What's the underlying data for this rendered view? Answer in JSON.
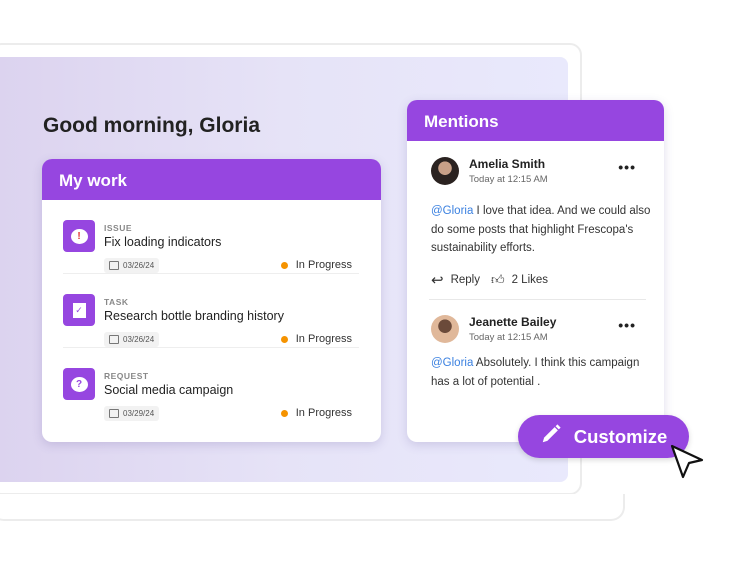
{
  "greeting": "Good morning, Gloria",
  "my_work": {
    "title": "My work",
    "items": [
      {
        "type": "ISSUE",
        "title": "Fix loading indicators",
        "date": "03/26/24",
        "status": "In Progress",
        "icon": "alert-bubble-icon"
      },
      {
        "type": "TASK",
        "title": "Research bottle branding history",
        "date": "03/26/24",
        "status": "In Progress",
        "icon": "task-check-icon"
      },
      {
        "type": "REQUEST",
        "title": "Social media campaign",
        "date": "03/29/24",
        "status": "In Progress",
        "icon": "question-bubble-icon"
      }
    ]
  },
  "mentions": {
    "title": "Mentions",
    "comments": [
      {
        "name": "Amelia Smith",
        "time": "Today at 12:15 AM",
        "mention": "@Gloria",
        "text": " I love that idea. And we could also do some posts that highlight Frescopa's sustainability efforts.",
        "reply": "Reply",
        "likes": "2 Likes"
      },
      {
        "name": "Jeanette Bailey",
        "time": "Today at 12:15 AM",
        "mention": "@Gloria",
        "text": " Absolutely. I think this campaign has a lot of potential ."
      }
    ]
  },
  "customize_label": "Customize",
  "colors": {
    "accent": "#9646e0",
    "status": "#f59300",
    "mention": "#3a80e0"
  }
}
